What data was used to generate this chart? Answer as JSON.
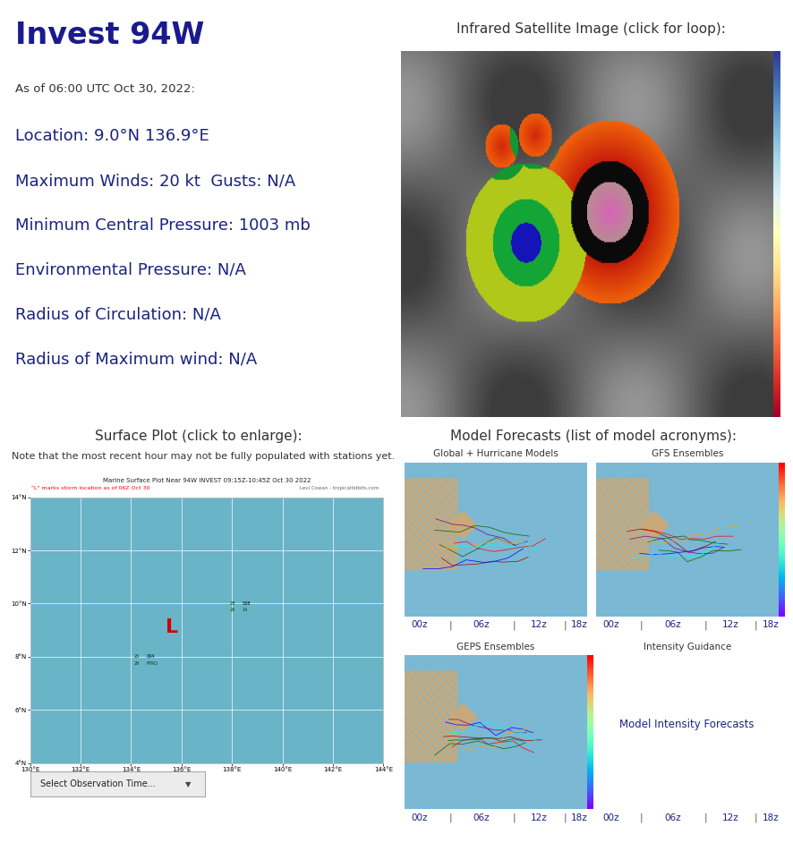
{
  "title": "Invest 94W",
  "title_color": "#1a1a8e",
  "title_fontsize": 24,
  "as_of": "As of 06:00 UTC Oct 30, 2022:",
  "as_of_fontsize": 9.5,
  "info_lines": [
    "Location: 9.0°N 136.9°E",
    "Maximum Winds: 20 kt  Gusts: N/A",
    "Minimum Central Pressure: 1003 mb",
    "Environmental Pressure: N/A",
    "Radius of Circulation: N/A",
    "Radius of Maximum wind: N/A"
  ],
  "info_fontsize": 13,
  "info_color": "#1a237e",
  "sat_title": "Infrared Satellite Image (click for loop):",
  "surface_title": "Surface Plot (click to enlarge):",
  "surface_note": "Note that the most recent hour may not be fully populated with stations yet.",
  "surface_map_title": "Marine Surface Plot Near 94W INVEST 09:15Z-10:45Z Oct 30 2022",
  "surface_map_subtitle": "\"L\" marks storm location as of 06Z Oct 30",
  "surface_map_credit": "Levi Cowan - tropicaltidbits.com",
  "surface_bg": "#6ab4c8",
  "storm_label": "L",
  "storm_label_color": "#cc0000",
  "storm_lon": 136.9,
  "storm_lat": 9.0,
  "map_lon_min": 130,
  "map_lon_max": 144,
  "map_lat_min": 4,
  "map_lat_max": 14,
  "map_lon_ticks": [
    130,
    132,
    134,
    136,
    138,
    140,
    142,
    144
  ],
  "map_lat_ticks": [
    4,
    6,
    8,
    10,
    12,
    14
  ],
  "model_title": "Model Forecasts (list of model acronyms):",
  "model_link_color": "#1a237e",
  "panel_titles": [
    "Global + Hurricane Models",
    "GFS Ensembles",
    "GEPS Ensembles",
    "Intensity Guidance"
  ],
  "panel_intensity_link": "Model Intensity Forecasts",
  "time_links": [
    "00z",
    "06z",
    "12z",
    "18z"
  ],
  "time_link_color": "#1a237e",
  "panel_ocean_color": "#7ab8d4",
  "panel_land_color": "#c8a97a",
  "select_obs": "Select Observation Time...",
  "background": "#ffffff",
  "divider": "#cccccc",
  "text_dark": "#333333"
}
